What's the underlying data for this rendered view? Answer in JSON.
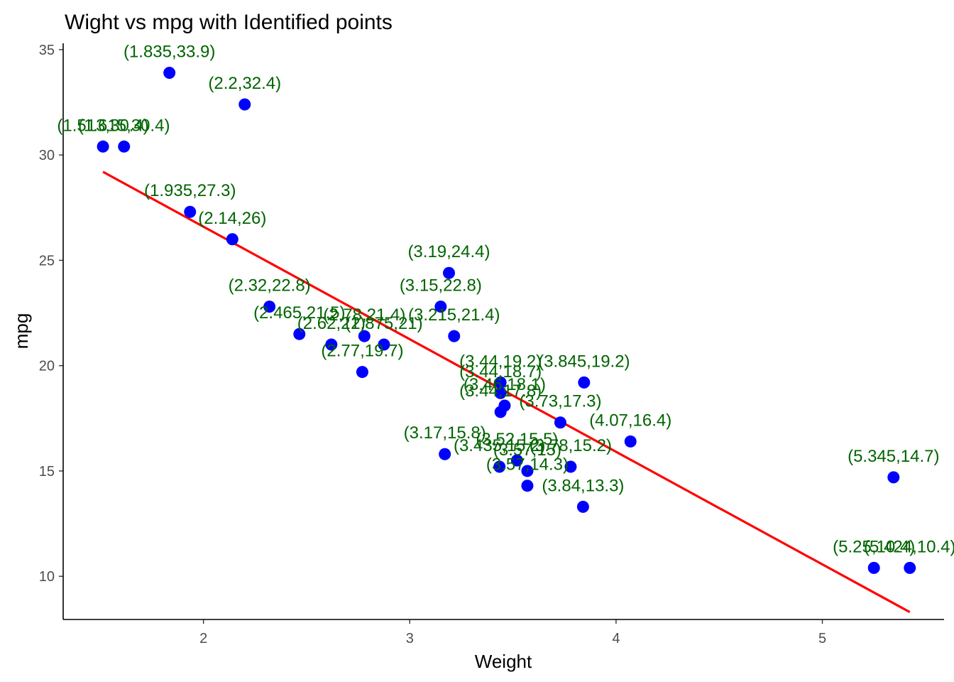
{
  "chart_data": {
    "type": "scatter",
    "title": "Wight vs mpg with Identified points",
    "xlabel": "Weight",
    "ylabel": "mpg",
    "xlim": [
      1.32,
      5.59
    ],
    "ylim": [
      7.95,
      35.3
    ],
    "xticks": [
      2,
      3,
      4,
      5
    ],
    "yticks": [
      10,
      15,
      20,
      25,
      30,
      35
    ],
    "grid": false,
    "point_color": "#0000ff",
    "label_color": "#006400",
    "line_color": "#ff0000",
    "points": [
      {
        "x": 2.62,
        "y": 21.0,
        "label": "(2.62,21)"
      },
      {
        "x": 2.875,
        "y": 21.0,
        "label": "(2.875,21)"
      },
      {
        "x": 2.32,
        "y": 22.8,
        "label": "(2.32,22.8)"
      },
      {
        "x": 3.215,
        "y": 21.4,
        "label": "(3.215,21.4)"
      },
      {
        "x": 3.44,
        "y": 18.7,
        "label": "(3.44,18.7)"
      },
      {
        "x": 3.46,
        "y": 18.1,
        "label": "(3.46,18.1)"
      },
      {
        "x": 3.57,
        "y": 14.3,
        "label": "(3.57,14.3)"
      },
      {
        "x": 3.19,
        "y": 24.4,
        "label": "(3.19,24.4)"
      },
      {
        "x": 3.15,
        "y": 22.8,
        "label": "(3.15,22.8)"
      },
      {
        "x": 3.44,
        "y": 19.2,
        "label": "(3.44,19.2)"
      },
      {
        "x": 3.44,
        "y": 17.8,
        "label": "(3.44,17.8)"
      },
      {
        "x": 4.07,
        "y": 16.4,
        "label": "(4.07,16.4)"
      },
      {
        "x": 3.73,
        "y": 17.3,
        "label": "(3.73,17.3)"
      },
      {
        "x": 3.78,
        "y": 15.2,
        "label": "(3.78,15.2)"
      },
      {
        "x": 5.25,
        "y": 10.4,
        "label": "(5.25,10.4)"
      },
      {
        "x": 5.424,
        "y": 10.4,
        "label": "(5.424,10.4)"
      },
      {
        "x": 5.345,
        "y": 14.7,
        "label": "(5.345,14.7)"
      },
      {
        "x": 2.2,
        "y": 32.4,
        "label": "(2.2,32.4)"
      },
      {
        "x": 1.615,
        "y": 30.4,
        "label": "(1.615,30.4)"
      },
      {
        "x": 1.835,
        "y": 33.9,
        "label": "(1.835,33.9)"
      },
      {
        "x": 2.465,
        "y": 21.5,
        "label": "(2.465,21.5)"
      },
      {
        "x": 3.52,
        "y": 15.5,
        "label": "(3.52,15.5)"
      },
      {
        "x": 3.435,
        "y": 15.2,
        "label": "(3.435,15.2)"
      },
      {
        "x": 3.84,
        "y": 13.3,
        "label": "(3.84,13.3)"
      },
      {
        "x": 3.845,
        "y": 19.2,
        "label": "(3.845,19.2)"
      },
      {
        "x": 1.935,
        "y": 27.3,
        "label": "(1.935,27.3)"
      },
      {
        "x": 2.14,
        "y": 26.0,
        "label": "(2.14,26)"
      },
      {
        "x": 1.513,
        "y": 30.4,
        "label": "(1.513,30.4)"
      },
      {
        "x": 3.17,
        "y": 15.8,
        "label": "(3.17,15.8)"
      },
      {
        "x": 2.77,
        "y": 19.7,
        "label": "(2.77,19.7)"
      },
      {
        "x": 3.57,
        "y": 15.0,
        "label": "(3.57,15)"
      },
      {
        "x": 2.78,
        "y": 21.4,
        "label": "(2.78,21.4)"
      }
    ],
    "fit_line": {
      "x": [
        1.513,
        5.424
      ],
      "y": [
        29.2,
        8.3
      ]
    }
  }
}
